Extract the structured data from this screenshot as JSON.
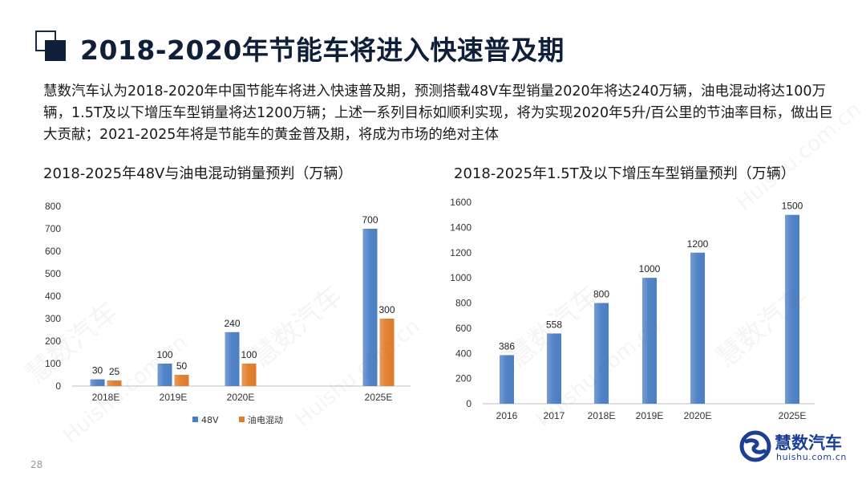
{
  "page": {
    "title": "2018-2020年节能车将进入快速普及期",
    "intro": "慧数汽车认为2018-2020年中国节能车将进入快速普及期，预测搭载48V车型销量2020年将达240万辆，油电混动将达100万辆，1.5T及以下增压车型销量将达1200万辆；上述一系列目标如顺利实现，将为实现2020年5升/百公里的节油率目标，做出巨大贡献；2021-2025年将是节能车的黄金普及期，将成为市场的绝对主体",
    "page_number": "28"
  },
  "logo": {
    "name": "慧数汽车",
    "url": "huishu.com.cn",
    "color": "#1c3f94"
  },
  "watermark": {
    "text": "慧数汽车",
    "url": "Huishu.com.cn"
  },
  "chart_data": [
    {
      "type": "bar",
      "title": "2018-2025年48V与油电混动销量预判（万辆）",
      "categories": [
        "2018E",
        "2019E",
        "2020E",
        "2025E"
      ],
      "series": [
        {
          "name": "48V",
          "values": [
            30,
            100,
            240,
            700
          ],
          "color": "#4a7ec4"
        },
        {
          "name": "油电混动",
          "values": [
            25,
            50,
            100,
            300
          ],
          "color": "#e07b28"
        }
      ],
      "yticks": [
        0,
        100,
        200,
        300,
        400,
        500,
        600,
        700,
        800
      ],
      "ylim": [
        0,
        800
      ],
      "grid": false,
      "legend": "bottom"
    },
    {
      "type": "bar",
      "title": "2018-2025年1.5T及以下增压车型销量预判（万辆）",
      "categories": [
        "2016",
        "2017",
        "2018E",
        "2019E",
        "2020E",
        "2025E"
      ],
      "series": [
        {
          "values": [
            386,
            558,
            800,
            1000,
            1200,
            1500
          ],
          "color": "#4a7ec4"
        }
      ],
      "yticks": [
        0,
        200,
        400,
        600,
        800,
        1000,
        1200,
        1400,
        1600
      ],
      "ylim": [
        0,
        1600
      ],
      "grid": false,
      "legend": "none"
    }
  ]
}
